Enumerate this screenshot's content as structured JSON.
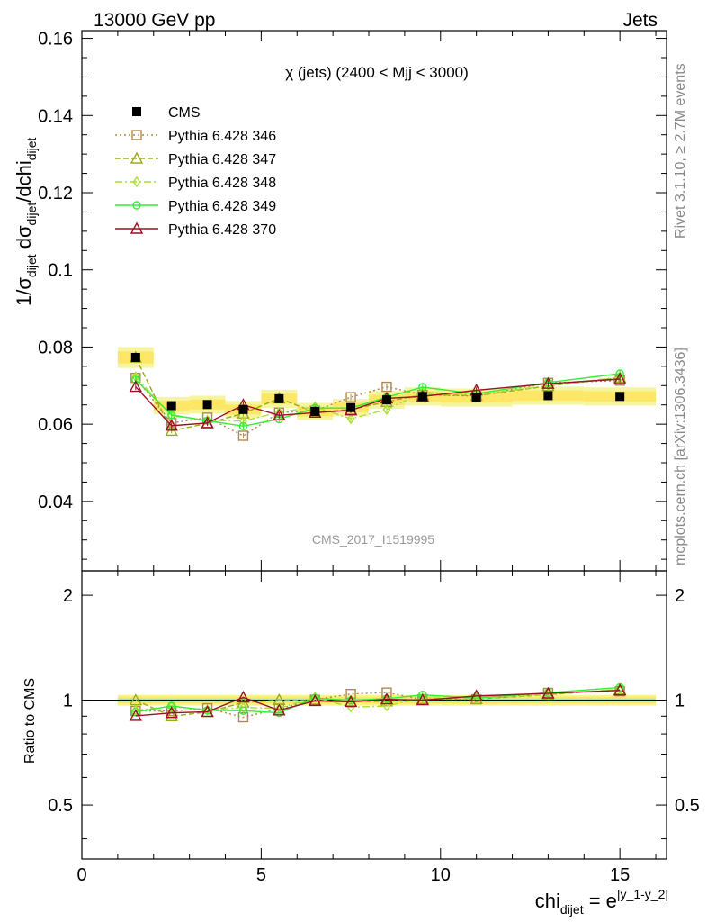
{
  "header": {
    "left": "13000 GeV pp",
    "right": "Jets"
  },
  "side_text": {
    "rivet": "Rivet 3.1.10, ≥ 2.7M events",
    "mcplots": "mcplots.cern.ch [arXiv:1306.3436]"
  },
  "watermark": "CMS_2017_I1519995",
  "chart_data": [
    {
      "type": "scatter",
      "panel": "main",
      "title": "χ (jets) (2400 < Mjj < 3000)",
      "ylabel": "1/σ_dijet dσ_dijet/dchi_dijet",
      "xlim": [
        0,
        16.3
      ],
      "ylim": [
        0.022,
        0.162
      ],
      "yticks": [
        0.04,
        0.06,
        0.08,
        0.1,
        0.12,
        0.14,
        0.16
      ],
      "ytick_labels": [
        "0.04",
        "0.06",
        "0.08",
        "0.1",
        "0.12",
        "0.14",
        "0.16"
      ],
      "legend_position": "top-left",
      "x": [
        1.5,
        2.5,
        3.5,
        4.5,
        5.5,
        6.5,
        7.5,
        8.5,
        9.5,
        11,
        13,
        15
      ],
      "data": {
        "name": "CMS",
        "color": "#000000",
        "marker": "square",
        "values": [
          0.0773,
          0.0648,
          0.0651,
          0.0638,
          0.0666,
          0.0633,
          0.0643,
          0.0663,
          0.0672,
          0.0669,
          0.0674,
          0.0672
        ],
        "band_inner_rel": 0.02,
        "band_outer_rel": 0.035
      },
      "series": [
        {
          "name": "Pythia 6.428 346",
          "color": "#b08850",
          "marker": "open-square",
          "dash": "2,3",
          "values": [
            0.072,
            0.0603,
            0.0617,
            0.057,
            0.063,
            0.0635,
            0.067,
            0.0697,
            0.0676,
            0.0673,
            0.0707,
            0.0713
          ]
        },
        {
          "name": "Pythia 6.428 347",
          "color": "#9aaa1f",
          "marker": "open-triangle",
          "dash": "6,3",
          "values": [
            0.0773,
            0.0583,
            0.0602,
            0.0628,
            0.0667,
            0.0631,
            0.0638,
            0.0658,
            0.0677,
            0.0674,
            0.0699,
            0.0721
          ]
        },
        {
          "name": "Pythia 6.428 348",
          "color": "#a8e030",
          "marker": "open-diamond",
          "dash": "8,3,2,3",
          "values": [
            0.0723,
            0.0622,
            0.061,
            0.0608,
            0.0631,
            0.0645,
            0.0614,
            0.0638,
            0.0683,
            0.0676,
            0.07,
            0.0722
          ]
        },
        {
          "name": "Pythia 6.428 349",
          "color": "#33ee33",
          "marker": "open-circle",
          "dash": "",
          "values": [
            0.0715,
            0.0624,
            0.0609,
            0.0595,
            0.0613,
            0.0642,
            0.0642,
            0.067,
            0.0696,
            0.0679,
            0.0708,
            0.0731
          ]
        },
        {
          "name": "Pythia 6.428 370",
          "color": "#991122",
          "marker": "open-triangle",
          "dash": "",
          "values": [
            0.0697,
            0.0596,
            0.0603,
            0.065,
            0.0623,
            0.063,
            0.0636,
            0.0667,
            0.0672,
            0.0688,
            0.0705,
            0.0717
          ]
        }
      ]
    },
    {
      "type": "scatter",
      "panel": "ratio",
      "ylabel": "Ratio to CMS",
      "xlabel": "chi_dijet = e^|y_1-y_2|",
      "xlim": [
        0,
        16.3
      ],
      "ylim": [
        0.35,
        2.35
      ],
      "yticks": [
        0.5,
        1,
        2
      ],
      "ytick_labels": [
        "0.5",
        "1",
        "2"
      ],
      "xticks": [
        0,
        5,
        10,
        15
      ],
      "xtick_labels": [
        "0",
        "5",
        "10",
        "15"
      ],
      "note": "series values are model / CMS"
    }
  ]
}
